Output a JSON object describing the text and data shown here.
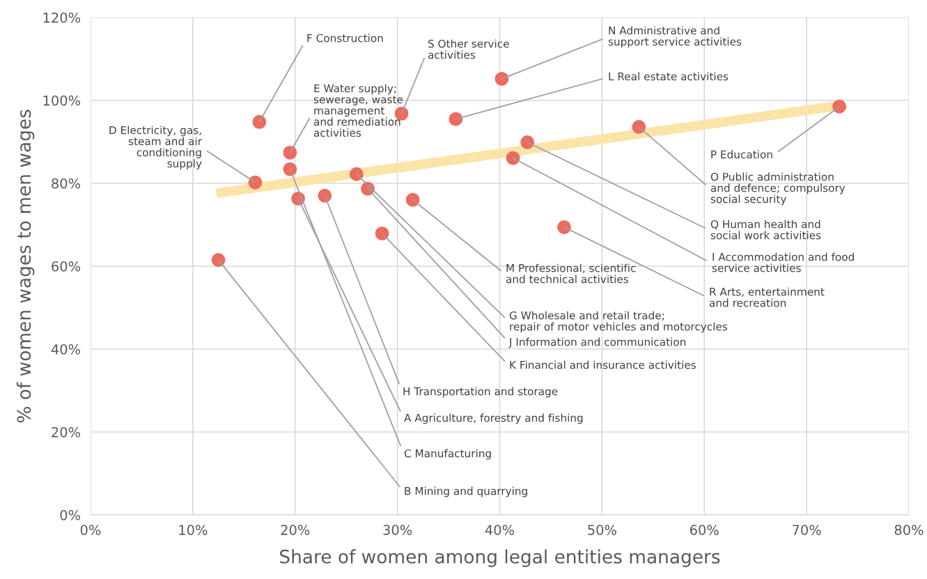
{
  "chart_data": {
    "type": "scatter",
    "xlabel": "Share of women among legal entities managers",
    "ylabel": "% of women wages to men wages",
    "xlim": [
      0,
      80
    ],
    "ylim": [
      0,
      120
    ],
    "xticks": [
      {
        "value": 0,
        "label": "0%"
      },
      {
        "value": 10,
        "label": "10%"
      },
      {
        "value": 20,
        "label": "20%"
      },
      {
        "value": 30,
        "label": "30%"
      },
      {
        "value": 40,
        "label": "40%"
      },
      {
        "value": 50,
        "label": "50%"
      },
      {
        "value": 60,
        "label": "60%"
      },
      {
        "value": 70,
        "label": "70%"
      },
      {
        "value": 80,
        "label": "80%"
      }
    ],
    "yticks": [
      {
        "value": 0,
        "label": "0%"
      },
      {
        "value": 20,
        "label": "20%"
      },
      {
        "value": 40,
        "label": "40%"
      },
      {
        "value": 60,
        "label": "60%"
      },
      {
        "value": 80,
        "label": "80%"
      },
      {
        "value": 100,
        "label": "100%"
      },
      {
        "value": 120,
        "label": "120%"
      }
    ],
    "grid": true,
    "marker": "circle",
    "series": [
      {
        "type": "line",
        "marker": "none",
        "color": "#fce4a8",
        "x": [
          12.3,
          73.2
        ],
        "values": [
          77.6,
          98.7
        ]
      },
      {
        "color": "#ec6a5e",
        "x": [
          16.5,
          19.5,
          16.1,
          12.5,
          20.3,
          19.5,
          22.9,
          26.0,
          27.1,
          28.5,
          31.5,
          30.4,
          35.7,
          40.2,
          41.3,
          42.7,
          46.3,
          53.6,
          73.2
        ],
        "values": [
          94.8,
          87.4,
          80.2,
          61.5,
          76.3,
          83.4,
          77.0,
          82.2,
          78.7,
          67.9,
          76.0,
          96.8,
          95.5,
          105.2,
          86.1,
          89.9,
          69.4,
          93.6,
          98.5
        ]
      }
    ],
    "annotations": [
      {
        "text": "F Construction",
        "x": 16.5,
        "y": 94.8
      },
      {
        "text": "E Water supply;\nsewerage, waste\nmanagement\nand remediation\nactivities",
        "x": 19.5,
        "y": 87.4
      },
      {
        "text": "D Electricity, gas,\nsteam and air\nconditioning\nsupply",
        "x": 16.1,
        "y": 80.2
      },
      {
        "text": "B Mining and quarrying",
        "x": 12.5,
        "y": 61.5
      },
      {
        "text": "A Agriculture, forestry and fishing",
        "x": 20.3,
        "y": 76.3
      },
      {
        "text": "C Manufacturing",
        "x": 19.5,
        "y": 83.4
      },
      {
        "text": "H Transportation and storage",
        "x": 22.9,
        "y": 77.0
      },
      {
        "text": "G Wholesale and retail trade;\nrepair of motor vehicles and motorcycles",
        "x": 26.0,
        "y": 82.2
      },
      {
        "text": "J Information and communication",
        "x": 27.1,
        "y": 78.7
      },
      {
        "text": "K Financial and insurance activities",
        "x": 28.5,
        "y": 67.9
      },
      {
        "text": "M Professional, scientific\nand technical activities",
        "x": 31.5,
        "y": 76.0
      },
      {
        "text": "S Other service\nactivities",
        "x": 30.4,
        "y": 96.8
      },
      {
        "text": "L Real estate activities",
        "x": 35.7,
        "y": 95.5
      },
      {
        "text": "N Administrative and\nsupport service activities",
        "x": 40.2,
        "y": 105.2
      },
      {
        "text": "I Accommodation and food\nservice activities",
        "x": 41.3,
        "y": 86.1
      },
      {
        "text": "Q Human health and\nsocial work activities",
        "x": 42.7,
        "y": 89.9
      },
      {
        "text": "R Arts, entertainment\nand recreation",
        "x": 46.3,
        "y": 69.4
      },
      {
        "text": "O Public administration\nand defence; compulsory\nsocial security",
        "x": 53.6,
        "y": 93.6
      },
      {
        "text": "P Education",
        "x": 73.2,
        "y": 98.5
      }
    ]
  }
}
